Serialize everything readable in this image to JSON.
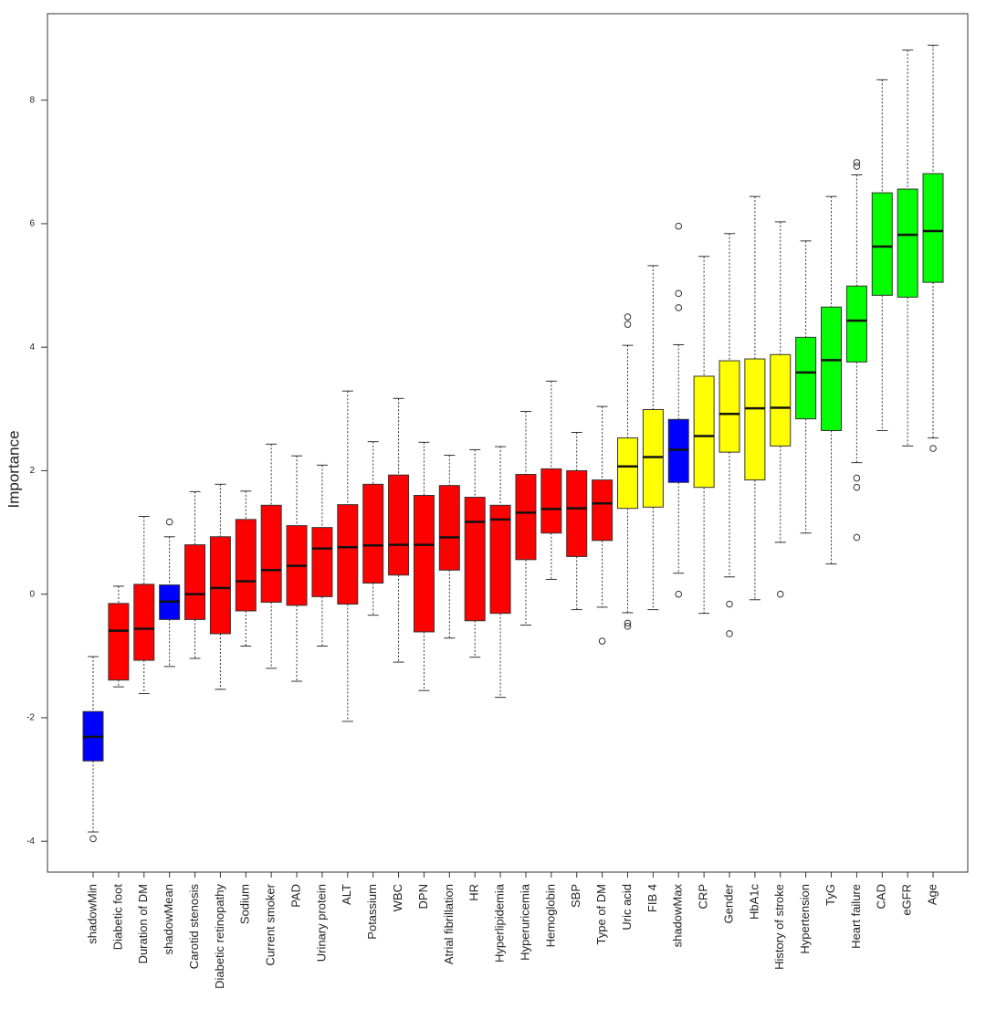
{
  "chart_data": {
    "type": "boxplot",
    "y_label": "Importance",
    "ylim": [
      -4.5,
      9.4
    ],
    "yticks": [
      -4,
      -2,
      0,
      2,
      4,
      6,
      8
    ],
    "categories": [
      "shadowMin",
      "Diabetic foot",
      "Duration of DM",
      "shadowMean",
      "Carotid stenosis",
      "Diabetic retinopathy",
      "Sodium",
      "Current smoker",
      "PAD",
      "Urinary protein",
      "ALT",
      "Potassium",
      "WBC",
      "DPN",
      "Atrial fibrillation",
      "HR",
      "Hyperlipidemia",
      "Hyperuricemia",
      "Hemoglobin",
      "SBP",
      "Type of DM",
      "Uric acid",
      "FIB 4",
      "shadowMax",
      "CRP",
      "Gender",
      "HbA1c",
      "History of stroke",
      "Hypertension",
      "TyG",
      "Heart failure",
      "CAD",
      "eGFR",
      "Age"
    ],
    "colors": [
      "#0000ff",
      "#ff0000",
      "#ff0000",
      "#0000ff",
      "#ff0000",
      "#ff0000",
      "#ff0000",
      "#ff0000",
      "#ff0000",
      "#ff0000",
      "#ff0000",
      "#ff0000",
      "#ff0000",
      "#ff0000",
      "#ff0000",
      "#ff0000",
      "#ff0000",
      "#ff0000",
      "#ff0000",
      "#ff0000",
      "#ff0000",
      "#ffff00",
      "#ffff00",
      "#0000ff",
      "#ffff00",
      "#ffff00",
      "#ffff00",
      "#ffff00",
      "#00ff00",
      "#00ff00",
      "#00ff00",
      "#00ff00",
      "#00ff00",
      "#00ff00"
    ],
    "whisker_low": [
      -3.85,
      -1.5,
      -1.61,
      -1.17,
      -1.04,
      -1.54,
      -0.84,
      -1.2,
      -1.41,
      -0.84,
      -2.06,
      -0.34,
      -1.1,
      -1.56,
      -0.71,
      -1.02,
      -1.67,
      -0.5,
      0.24,
      -0.25,
      -0.21,
      -0.3,
      -0.25,
      0.34,
      -0.31,
      0.28,
      -0.09,
      0.84,
      0.99,
      0.49,
      2.13,
      2.65,
      2.4,
      2.53
    ],
    "q1": [
      -2.7,
      -1.39,
      -1.07,
      -0.41,
      -0.41,
      -0.64,
      -0.27,
      -0.13,
      -0.18,
      -0.04,
      -0.16,
      0.18,
      0.31,
      -0.61,
      0.39,
      -0.43,
      -0.31,
      0.56,
      0.99,
      0.61,
      0.87,
      1.39,
      1.41,
      1.81,
      1.73,
      2.3,
      1.85,
      2.4,
      2.84,
      2.65,
      3.76,
      4.84,
      4.81,
      5.05
    ],
    "median": [
      -2.31,
      -0.59,
      -0.56,
      -0.12,
      0.0,
      0.1,
      0.21,
      0.39,
      0.46,
      0.74,
      0.76,
      0.79,
      0.8,
      0.8,
      0.92,
      1.17,
      1.21,
      1.32,
      1.38,
      1.39,
      1.47,
      2.07,
      2.22,
      2.34,
      2.56,
      2.92,
      3.01,
      3.02,
      3.59,
      3.79,
      4.43,
      5.63,
      5.82,
      5.88
    ],
    "q3": [
      -1.9,
      -0.15,
      0.16,
      0.15,
      0.8,
      0.93,
      1.21,
      1.44,
      1.11,
      1.08,
      1.45,
      1.78,
      1.93,
      1.6,
      1.76,
      1.57,
      1.44,
      1.94,
      2.03,
      2.0,
      1.85,
      2.53,
      2.99,
      2.83,
      3.53,
      3.78,
      3.81,
      3.88,
      4.16,
      4.65,
      4.99,
      6.5,
      6.56,
      6.81
    ],
    "whisker_high": [
      -1.01,
      0.13,
      1.26,
      0.93,
      1.66,
      1.78,
      1.67,
      2.43,
      2.24,
      2.09,
      3.29,
      2.47,
      3.17,
      2.46,
      2.25,
      2.34,
      2.39,
      2.96,
      3.45,
      2.62,
      3.04,
      4.03,
      5.32,
      4.04,
      5.47,
      5.84,
      6.44,
      6.03,
      5.72,
      6.44,
      6.79,
      8.33,
      8.81,
      8.89
    ],
    "outliers": [
      [
        -3.96
      ],
      [],
      [],
      [
        1.17
      ],
      [],
      [],
      [],
      [],
      [],
      [],
      [],
      [],
      [],
      [],
      [],
      [],
      [],
      [],
      [],
      [],
      [
        -0.76
      ],
      [
        4.49,
        4.37,
        -0.47,
        -0.52
      ],
      [],
      [
        5.96,
        4.87,
        4.64,
        0.0
      ],
      [],
      [
        -0.16,
        -0.64
      ],
      [],
      [
        0.0
      ],
      [],
      [],
      [
        6.99,
        6.93,
        1.88,
        1.73,
        0.92
      ],
      [],
      [],
      [
        2.36
      ]
    ]
  }
}
